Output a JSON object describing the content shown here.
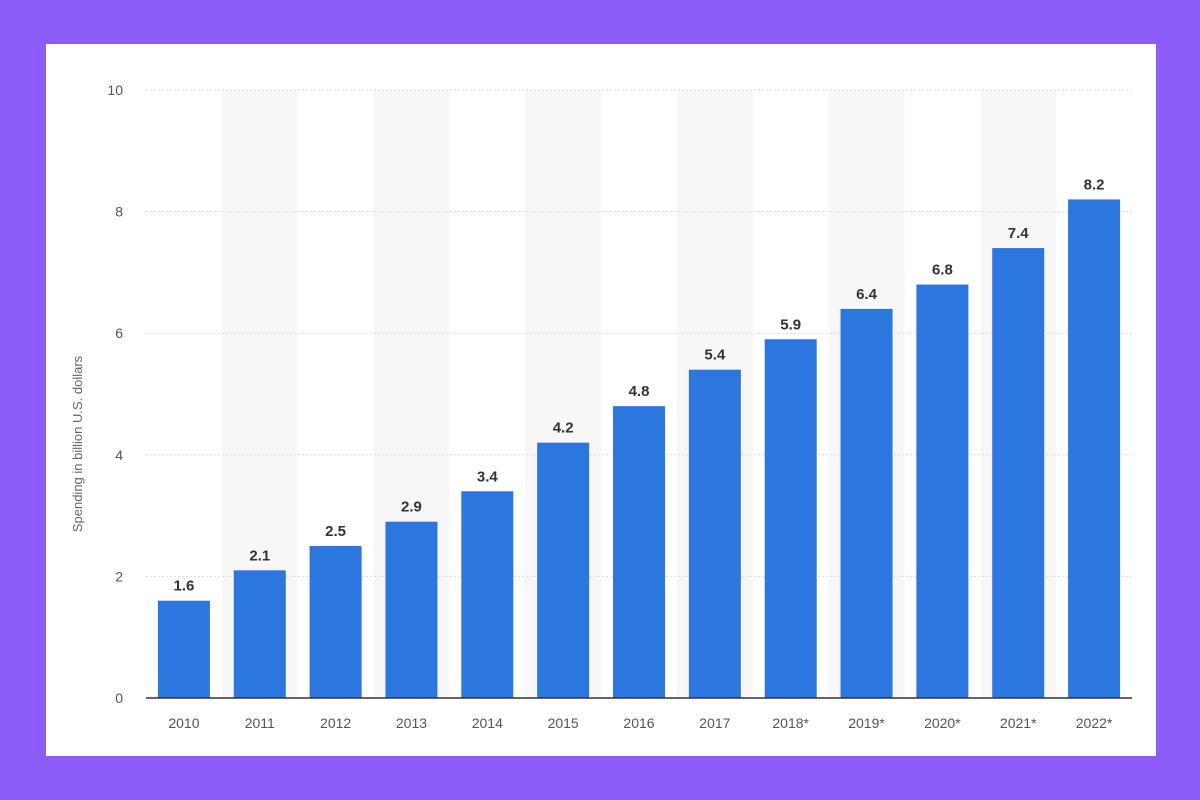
{
  "chart_data": {
    "type": "bar",
    "title": "",
    "xlabel": "",
    "ylabel": "Spending in billion U.S. dollars",
    "ylim": [
      0,
      10
    ],
    "yticks": [
      0,
      2,
      4,
      6,
      8,
      10
    ],
    "grid": true,
    "categories": [
      "2010",
      "2011",
      "2012",
      "2013",
      "2014",
      "2015",
      "2016",
      "2017",
      "2018*",
      "2019*",
      "2020*",
      "2021*",
      "2022*"
    ],
    "values": [
      1.6,
      2.1,
      2.5,
      2.9,
      3.4,
      4.2,
      4.8,
      5.4,
      5.9,
      6.4,
      6.8,
      7.4,
      8.2
    ],
    "value_labels": [
      "1.6",
      "2.1",
      "2.5",
      "2.9",
      "3.4",
      "4.2",
      "4.8",
      "5.4",
      "5.9",
      "6.4",
      "6.8",
      "7.4",
      "8.2"
    ],
    "colors": {
      "bar": "#2b76df",
      "stripe": "#f7f7f7",
      "grid": "#d9d9d9",
      "axis": "#333333",
      "frame": "#8b5cf6",
      "background": "#ffffff"
    }
  }
}
